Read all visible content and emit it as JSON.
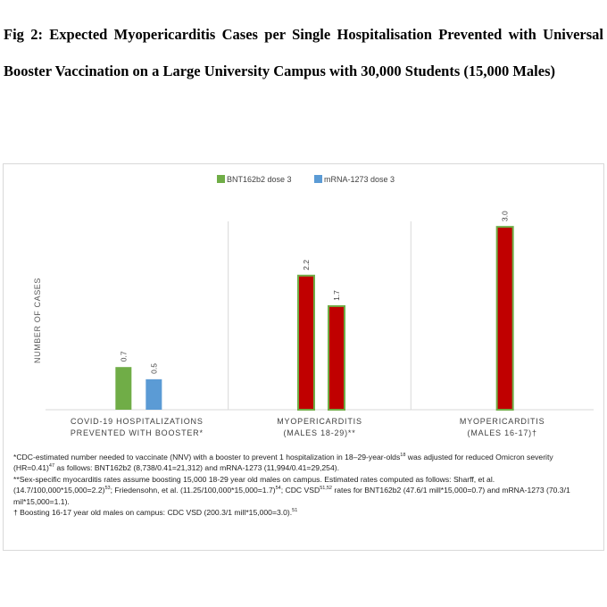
{
  "figure": {
    "title": "Fig 2: Expected Myopericarditis Cases per Single Hospitalisation Prevented with Universal Booster Vaccination on a Large University Campus with 30,000 Students (15,000 Males)"
  },
  "chart_data": {
    "type": "bar",
    "ylabel": "NUMBER OF CASES",
    "ylim": [
      0,
      3.5
    ],
    "grid": false,
    "legend_position": "top",
    "categories": [
      {
        "line1": "COVID-19 HOSPITALIZATIONS",
        "line2": "PREVENTED WITH BOOSTER*"
      },
      {
        "line1": "MYOPERICARDITIS",
        "line2": "(MALES 18-29)**"
      },
      {
        "line1": "MYOPERICARDITIS",
        "line2": "(MALES 16-17)†"
      }
    ],
    "series": [
      {
        "name": "BNT162b2 dose 3",
        "legend_color": "#70ad47",
        "values": [
          0.7,
          2.2,
          3.0
        ]
      },
      {
        "name": "mRNA-1273 dose 3",
        "legend_color": "#5b9bd5",
        "values": [
          0.5,
          1.7,
          null
        ]
      }
    ],
    "data_labels": [
      [
        "0.7",
        "2.2",
        "3.0"
      ],
      [
        "0.5",
        "1.7",
        null
      ]
    ],
    "bar_styles": [
      [
        {
          "fill": "#70ad47",
          "stroke": "none"
        },
        {
          "fill": "#c00000",
          "stroke": "#70ad47"
        },
        {
          "fill": "#c00000",
          "stroke": "#70ad47"
        }
      ],
      [
        {
          "fill": "#5b9bd5",
          "stroke": "none"
        },
        {
          "fill": "#c00000",
          "stroke": "#70ad47"
        },
        null
      ]
    ]
  },
  "footnotes": {
    "note1_a": "*CDC-estimated number needed to vaccinate (NNV) with a booster to prevent 1 hospitalization in 18–29-year-olds",
    "note1_sup": "18",
    "note1_b": " was adjusted for reduced Omicron severity (HR=0.41)",
    "note1_sup2": "47",
    "note1_c": " as follows: BNT162b2 (8,738/0.41=21,312) and mRNA-1273 (11,994/0.41=29,254).",
    "note2_a": "**Sex-specific myocarditis rates assume boosting 15,000 18-29 year old males on campus. Estimated rates computed as follows: Sharff, et al. (14.7/100,000*15,000=2.2)",
    "note2_sup": "53",
    "note2_b": "; Friedensohn, et al. (11.25/100,000*15,000=1.7)",
    "note2_sup2": "54",
    "note2_c": "; CDC VSD",
    "note2_sup3": "51,52",
    "note2_d": " rates for BNT162b2 (47.6/1 mill*15,000=0.7) and mRNA-1273 (70.3/1 mil*15,000=1.1).",
    "note3_a": "† Boosting 16-17 year old males on campus: CDC VSD (200.3/1 mill*15,000=3.0).",
    "note3_sup": "51"
  }
}
